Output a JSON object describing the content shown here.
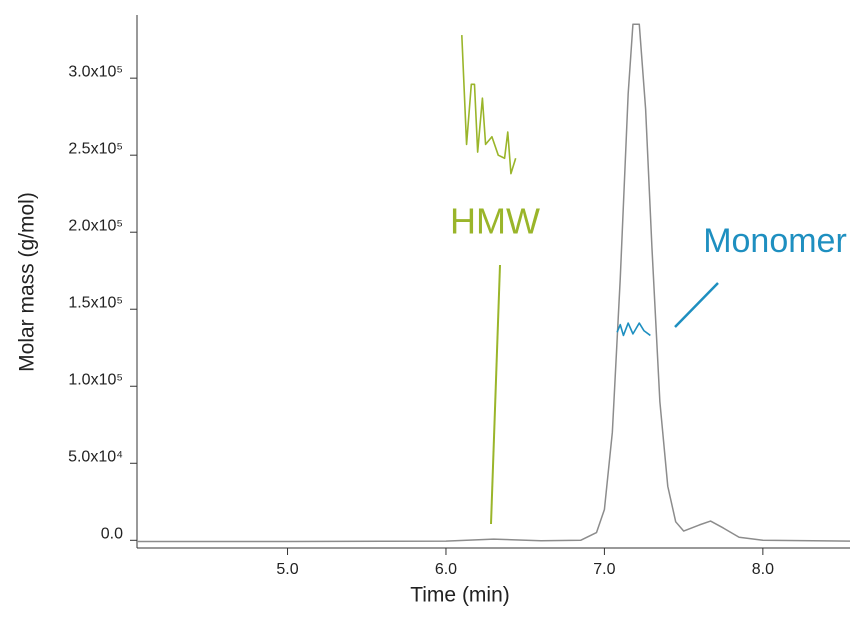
{
  "chart_data": {
    "type": "line",
    "x_label": "Time (min)",
    "y_label": "Molar mass (g/mol)",
    "xlim": [
      4.05,
      8.55
    ],
    "ylim": [
      -5000,
      341000
    ],
    "xticks": [
      {
        "value": 5,
        "label": "5.0"
      },
      {
        "value": 6,
        "label": "6.0"
      },
      {
        "value": 7,
        "label": "7.0"
      },
      {
        "value": 8,
        "label": "8.0"
      }
    ],
    "yticks": [
      {
        "value": 0,
        "label": "0.0"
      },
      {
        "value": 50000,
        "label": "5.0x10⁴"
      },
      {
        "value": 100000,
        "label": "1.0x10⁵"
      },
      {
        "value": 150000,
        "label": "1.5x10⁵"
      },
      {
        "value": 200000,
        "label": "2.0x10⁵"
      },
      {
        "value": 250000,
        "label": "2.5x10⁵"
      },
      {
        "value": 300000,
        "label": "3.0x10⁵"
      }
    ],
    "series": [
      {
        "color": "#8c8c8c",
        "x": [
          4.05,
          5.0,
          6.0,
          6.3,
          6.6,
          6.85,
          6.95,
          7.0,
          7.05,
          7.1,
          7.15,
          7.18,
          7.22,
          7.26,
          7.3,
          7.35,
          7.4,
          7.45,
          7.5,
          7.6,
          7.67,
          7.75,
          7.85,
          8.0,
          8.55
        ],
        "values": [
          -800,
          -800,
          -500,
          800,
          -300,
          0,
          5000,
          20000,
          70000,
          170000,
          290000,
          335000,
          335000,
          280000,
          190000,
          90000,
          35000,
          12000,
          6000,
          10000,
          12500,
          8000,
          2000,
          0,
          -500
        ]
      },
      {
        "name": "HMW",
        "color": "#9ab52a",
        "x": [
          6.1,
          6.13,
          6.16,
          6.18,
          6.2,
          6.23,
          6.25,
          6.29,
          6.33,
          6.37,
          6.39,
          6.41,
          6.44
        ],
        "values": [
          328000,
          257000,
          296000,
          296000,
          252000,
          287000,
          257000,
          262000,
          250000,
          248000,
          265000,
          238000,
          248000
        ]
      },
      {
        "name": "Monomer",
        "color": "#1e8fc0",
        "x": [
          7.08,
          7.1,
          7.12,
          7.15,
          7.18,
          7.22,
          7.25,
          7.29
        ],
        "values": [
          135000,
          140000,
          133000,
          141000,
          134000,
          141000,
          136000,
          133000
        ]
      }
    ]
  }
}
